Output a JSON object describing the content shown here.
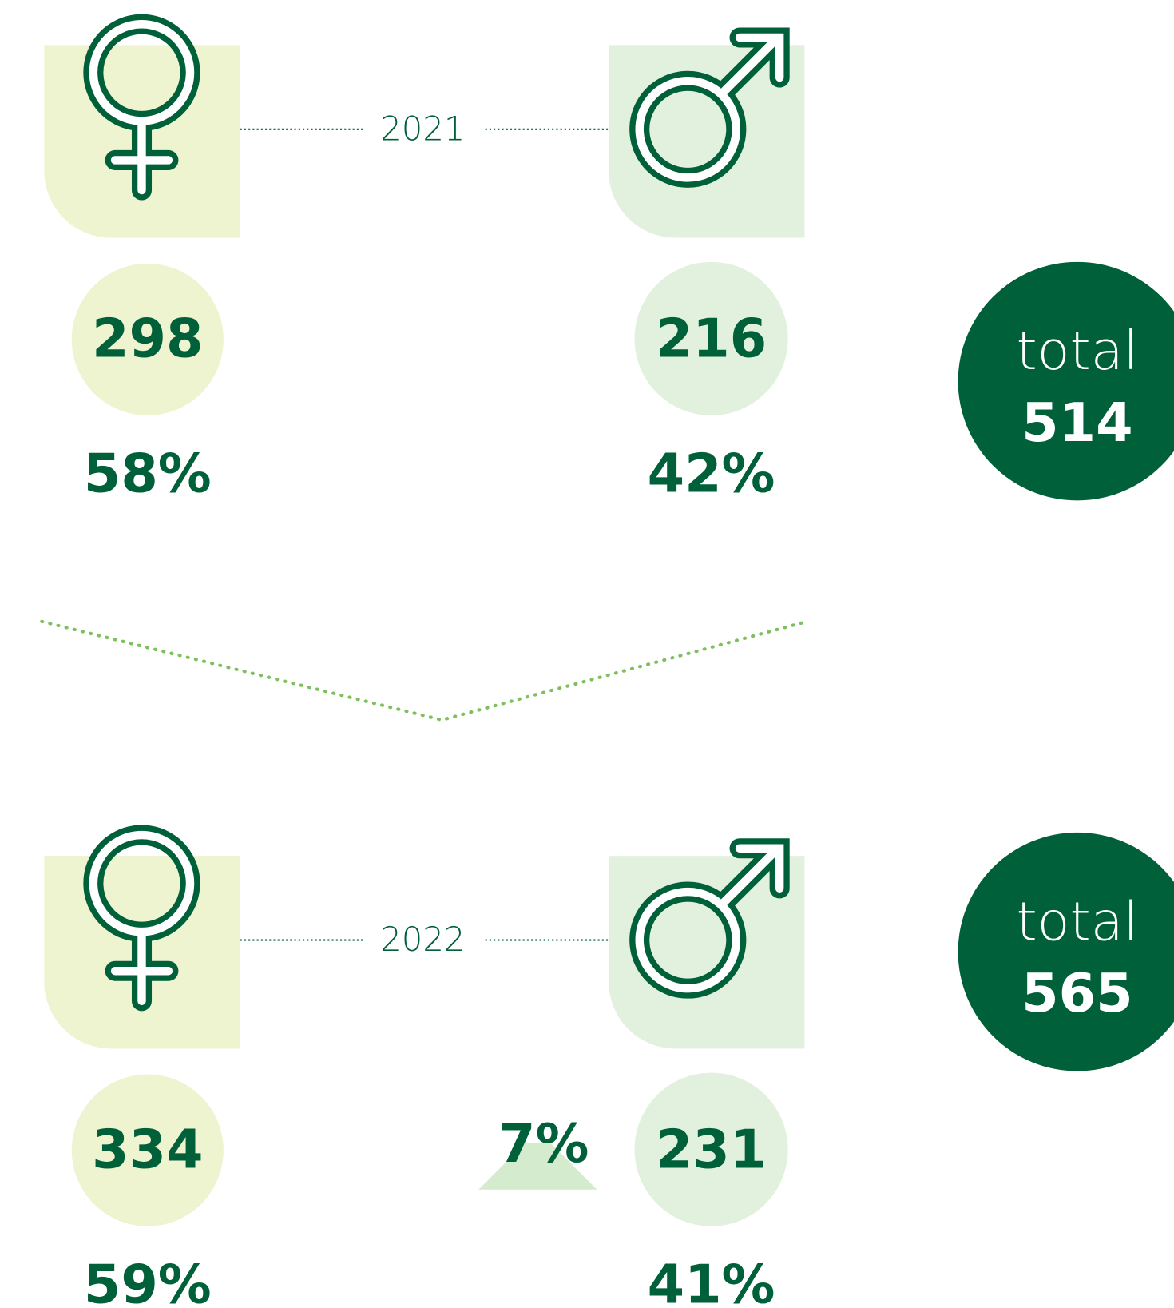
{
  "years": [
    {
      "year": "2021",
      "female": {
        "count": 298,
        "share": "58%"
      },
      "male": {
        "count": 216,
        "share": "42%"
      },
      "total": {
        "label": "total",
        "value": 514
      }
    },
    {
      "year": "2022",
      "female": {
        "count": 334,
        "share": "59%"
      },
      "male": {
        "count": 231,
        "share": "41%",
        "change": "7%"
      },
      "total": {
        "label": "total",
        "value": 565
      }
    }
  ]
}
